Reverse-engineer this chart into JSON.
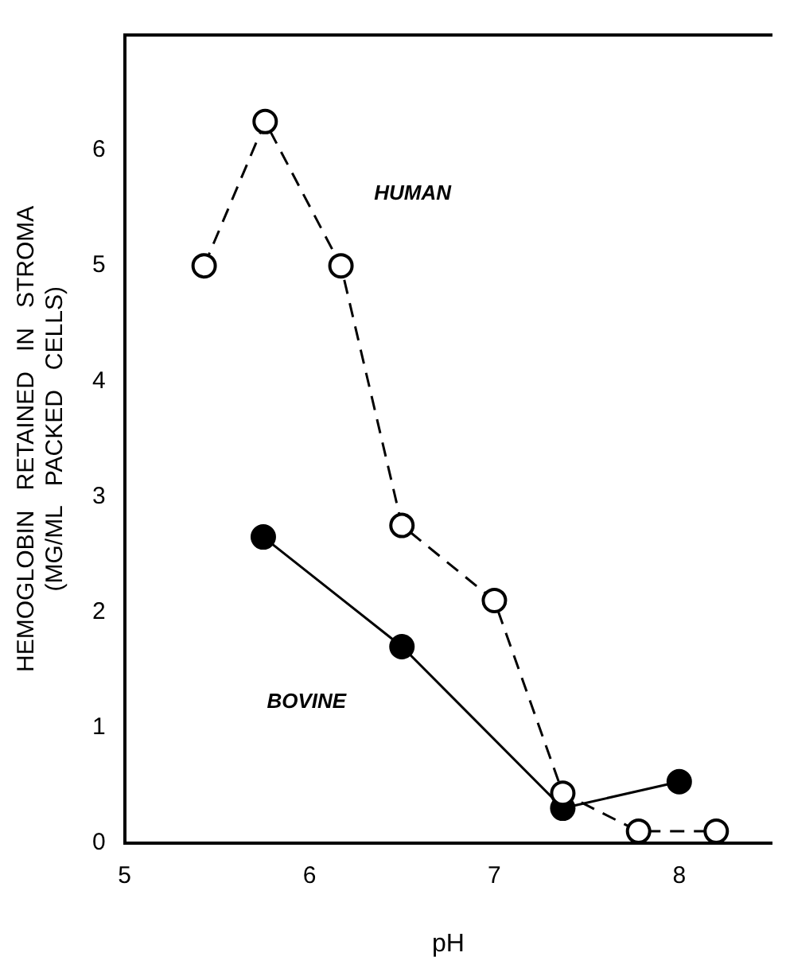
{
  "chart_data": {
    "type": "line",
    "xlabel": "pH",
    "ylabel": [
      "HEMOGLOBIN   RETAINED   IN   STROMA",
      "(MG/ML   PACKED   CELLS)"
    ],
    "xlim": [
      5,
      8.5
    ],
    "xticks": [
      5,
      6,
      7,
      8
    ],
    "ylim": [
      0,
      7
    ],
    "yticks": [
      0,
      1,
      2,
      3,
      4,
      5,
      6
    ],
    "series": [
      {
        "name": "HUMAN",
        "color": "#000000",
        "line_style": "dashed",
        "x": [
          5.43,
          5.76,
          6.17,
          6.5,
          7.0,
          7.37,
          7.78,
          8.2
        ],
        "values": [
          5.0,
          6.25,
          5.0,
          2.75,
          2.1,
          0.43,
          0.1,
          0.1
        ]
      },
      {
        "name": "BOVINE",
        "color": "#000000",
        "line_style": "solid",
        "x": [
          5.75,
          6.5,
          7.37,
          8.0
        ],
        "values": [
          2.65,
          1.7,
          0.3,
          0.53
        ]
      }
    ],
    "marker": "circle",
    "grid": false,
    "legend": false
  }
}
